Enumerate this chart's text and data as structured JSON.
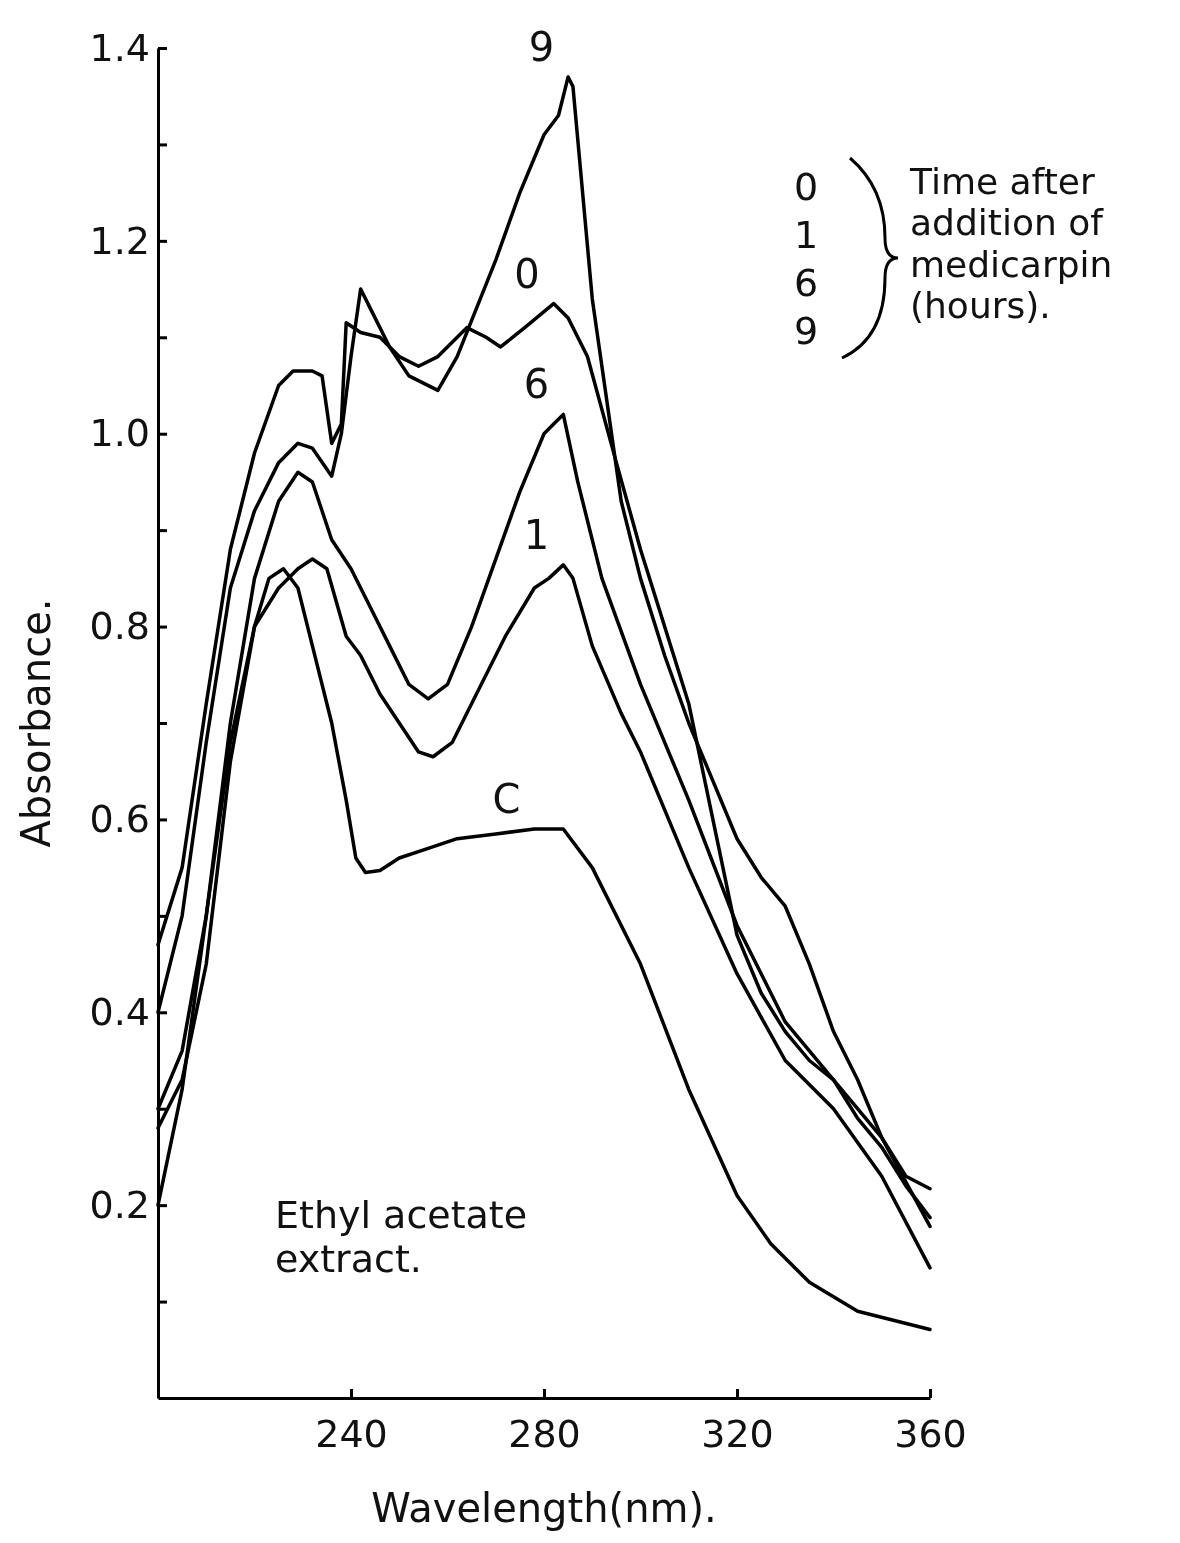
{
  "chart_data": {
    "type": "line",
    "xlabel": "Wavelength(nm).",
    "ylabel": "Absorbance.",
    "legend_title": "Time after addition of medicarpin (hours).",
    "legend": "top right",
    "grid": false,
    "marker": "none",
    "line_style": "solid",
    "xlim": [
      200,
      360
    ],
    "xticks": [
      240,
      280,
      320,
      360
    ],
    "ylim": [
      0,
      1.4
    ],
    "yticks": [
      {
        "value": 0.1,
        "label": null
      },
      {
        "value": 0.2,
        "label": "0.2"
      },
      {
        "value": 0.3,
        "label": null
      },
      {
        "value": 0.4,
        "label": "0.4"
      },
      {
        "value": 0.5,
        "label": null
      },
      {
        "value": 0.6,
        "label": "0.6"
      },
      {
        "value": 0.7,
        "label": null
      },
      {
        "value": 0.8,
        "label": "0.8"
      },
      {
        "value": 0.9,
        "label": null
      },
      {
        "value": 1.0,
        "label": "1.0"
      },
      {
        "value": 1.1,
        "label": null
      },
      {
        "value": 1.2,
        "label": "1.2"
      },
      {
        "value": 1.3,
        "label": null
      },
      {
        "value": 1.4,
        "label": "1.4"
      }
    ],
    "annotations": [
      "Ethyl acetate extract."
    ],
    "series": [
      {
        "name": "0",
        "color": "#000000",
        "x": [
          200,
          205,
          210,
          215,
          220,
          225,
          228,
          232,
          234,
          236,
          238,
          239,
          242,
          246,
          250,
          254,
          258,
          264,
          268,
          271,
          276,
          282,
          285,
          289,
          295,
          300,
          305,
          310,
          315,
          320,
          325,
          330,
          335,
          340,
          345,
          350,
          355,
          360
        ],
        "values": [
          0.47,
          0.55,
          0.72,
          0.88,
          0.98,
          1.05,
          1.065,
          1.065,
          1.06,
          0.99,
          1.01,
          1.115,
          1.105,
          1.1,
          1.08,
          1.07,
          1.08,
          1.11,
          1.1,
          1.09,
          1.11,
          1.135,
          1.12,
          1.08,
          0.97,
          0.88,
          0.8,
          0.72,
          0.6,
          0.48,
          0.42,
          0.38,
          0.35,
          0.33,
          0.29,
          0.26,
          0.22,
          0.187
        ]
      },
      {
        "name": "1",
        "color": "#000000",
        "x": [
          200,
          205,
          210,
          215,
          220,
          225,
          229,
          232,
          235,
          239,
          242,
          246,
          250,
          254,
          257,
          261,
          266,
          272,
          278,
          281,
          284,
          286,
          290,
          296,
          300,
          310,
          320,
          330,
          340,
          350,
          360
        ],
        "values": [
          0.28,
          0.33,
          0.45,
          0.66,
          0.8,
          0.84,
          0.86,
          0.87,
          0.86,
          0.79,
          0.77,
          0.73,
          0.7,
          0.67,
          0.665,
          0.68,
          0.73,
          0.79,
          0.84,
          0.85,
          0.864,
          0.85,
          0.78,
          0.71,
          0.67,
          0.55,
          0.44,
          0.35,
          0.3,
          0.23,
          0.135
        ]
      },
      {
        "name": "6",
        "color": "#000000",
        "x": [
          200,
          205,
          210,
          215,
          220,
          225,
          229,
          232,
          236,
          240,
          244,
          248,
          252,
          256,
          260,
          265,
          270,
          275,
          280,
          282,
          284,
          287,
          292,
          300,
          310,
          320,
          330,
          340,
          350,
          360
        ],
        "values": [
          0.3,
          0.36,
          0.5,
          0.7,
          0.85,
          0.93,
          0.96,
          0.95,
          0.89,
          0.86,
          0.82,
          0.78,
          0.74,
          0.725,
          0.74,
          0.8,
          0.87,
          0.94,
          1.0,
          1.01,
          1.02,
          0.95,
          0.85,
          0.74,
          0.62,
          0.49,
          0.39,
          0.33,
          0.27,
          0.178
        ]
      },
      {
        "name": "9",
        "color": "#000000",
        "x": [
          200,
          205,
          210,
          215,
          220,
          225,
          229,
          232,
          236,
          238,
          240,
          242,
          244,
          248,
          252,
          258,
          262,
          266,
          270,
          275,
          280,
          283,
          285,
          286,
          290,
          296,
          300,
          305,
          310,
          315,
          320,
          325,
          330,
          335,
          340,
          345,
          350,
          355,
          360
        ],
        "values": [
          0.4,
          0.5,
          0.68,
          0.84,
          0.92,
          0.97,
          0.99,
          0.985,
          0.956,
          1.0,
          1.08,
          1.15,
          1.13,
          1.09,
          1.06,
          1.045,
          1.08,
          1.13,
          1.18,
          1.25,
          1.31,
          1.33,
          1.37,
          1.36,
          1.14,
          0.93,
          0.85,
          0.77,
          0.7,
          0.64,
          0.58,
          0.54,
          0.51,
          0.45,
          0.38,
          0.33,
          0.27,
          0.23,
          0.217
        ]
      },
      {
        "name": "C",
        "color": "#000000",
        "x": [
          200,
          205,
          210,
          215,
          220,
          223,
          226,
          229,
          232,
          236,
          239,
          241,
          243,
          246,
          250,
          256,
          262,
          270,
          278,
          284,
          290,
          300,
          310,
          320,
          327,
          335,
          345,
          360
        ],
        "values": [
          0.2,
          0.32,
          0.5,
          0.68,
          0.8,
          0.85,
          0.86,
          0.84,
          0.78,
          0.7,
          0.62,
          0.56,
          0.545,
          0.547,
          0.56,
          0.57,
          0.58,
          0.585,
          0.59,
          0.59,
          0.55,
          0.45,
          0.32,
          0.21,
          0.16,
          0.12,
          0.09,
          0.071
        ]
      }
    ]
  }
}
